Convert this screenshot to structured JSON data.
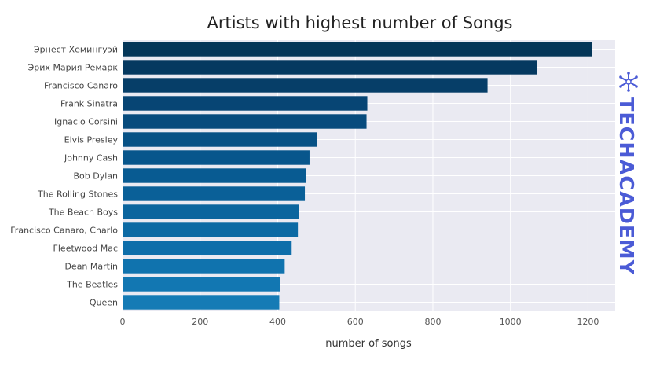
{
  "chart_data": {
    "type": "bar",
    "orientation": "horizontal",
    "title": "Artists with highest number of Songs",
    "xlabel": "number of songs",
    "ylabel": "",
    "xlim": [
      0,
      1270
    ],
    "xticks": [
      0,
      200,
      400,
      600,
      800,
      1000,
      1200
    ],
    "grid": true,
    "categories": [
      "Эрнест Хемингуэй",
      "Эрих Мария Ремарк",
      "Francisco Canaro",
      "Frank Sinatra",
      "Ignacio Corsini",
      "Elvis Presley",
      "Johnny Cash",
      "Bob Dylan",
      "The Rolling Stones",
      "The Beach Boys",
      "Francisco Canaro, Charlo",
      "Fleetwood Mac",
      "Dean Martin",
      "The Beatles",
      "Queen"
    ],
    "values": [
      1211,
      1068,
      941,
      631,
      629,
      502,
      482,
      473,
      470,
      455,
      452,
      436,
      418,
      406,
      404
    ],
    "colors": [
      "#043658",
      "#053960",
      "#063e68",
      "#074574",
      "#074b7d",
      "#075185",
      "#08568c",
      "#085b92",
      "#0a6098",
      "#0b659e",
      "#0c6aa4",
      "#0e6eaa",
      "#1073ae",
      "#1277b2",
      "#157bb5"
    ],
    "background": "#eaeaf2",
    "grid_color": "#ffffff"
  },
  "watermark": {
    "text": "TECHACADEMY",
    "icon": "snowflake-logo-icon",
    "color": "#4b5bd6"
  }
}
